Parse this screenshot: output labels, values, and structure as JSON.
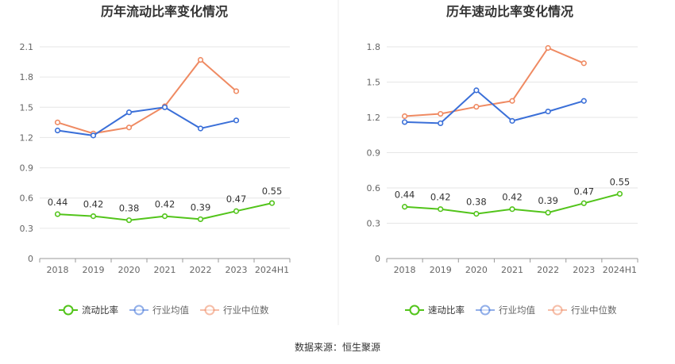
{
  "source": "数据来源：恒生聚源",
  "colors": {
    "company": "#52c41a",
    "industry_avg": "#3a6fd8",
    "industry_median": "#ef8a62",
    "grid": "#e6e6e6",
    "axis": "#999999"
  },
  "chart_data": [
    {
      "type": "line",
      "title": "历年流动比率变化情况",
      "categories": [
        "2018",
        "2019",
        "2020",
        "2021",
        "2022",
        "2023",
        "2024H1"
      ],
      "ylim": [
        0,
        2.1
      ],
      "yticks": [
        "0",
        "0.3",
        "0.6",
        "0.9",
        "1.2",
        "1.5",
        "1.8",
        "2.1"
      ],
      "grid": true,
      "legend": "bottom",
      "series": [
        {
          "name": "流动比率",
          "key": "company",
          "labels": [
            "0.44",
            "0.42",
            "0.38",
            "0.42",
            "0.39",
            "0.47",
            "0.55"
          ],
          "values": [
            0.44,
            0.42,
            0.38,
            0.42,
            0.39,
            0.47,
            0.55
          ]
        },
        {
          "name": "行业均值",
          "key": "industry_avg",
          "values": [
            1.27,
            1.22,
            1.45,
            1.5,
            1.29,
            1.37,
            null
          ]
        },
        {
          "name": "行业中位数",
          "key": "industry_median",
          "values": [
            1.35,
            1.24,
            1.3,
            1.51,
            1.97,
            1.66,
            null
          ]
        }
      ]
    },
    {
      "type": "line",
      "title": "历年速动比率变化情况",
      "categories": [
        "2018",
        "2019",
        "2020",
        "2021",
        "2022",
        "2023",
        "2024H1"
      ],
      "ylim": [
        0,
        1.8
      ],
      "yticks": [
        "0",
        "0.3",
        "0.6",
        "0.9",
        "1.2",
        "1.5",
        "1.8"
      ],
      "grid": true,
      "legend": "bottom",
      "series": [
        {
          "name": "速动比率",
          "key": "company",
          "labels": [
            "0.44",
            "0.42",
            "0.38",
            "0.42",
            "0.39",
            "0.47",
            "0.55"
          ],
          "values": [
            0.44,
            0.42,
            0.38,
            0.42,
            0.39,
            0.47,
            0.55
          ]
        },
        {
          "name": "行业均值",
          "key": "industry_avg",
          "values": [
            1.16,
            1.15,
            1.43,
            1.17,
            1.25,
            1.34,
            null
          ]
        },
        {
          "name": "行业中位数",
          "key": "industry_median",
          "values": [
            1.21,
            1.23,
            1.29,
            1.34,
            1.79,
            1.66,
            null
          ]
        }
      ]
    }
  ]
}
